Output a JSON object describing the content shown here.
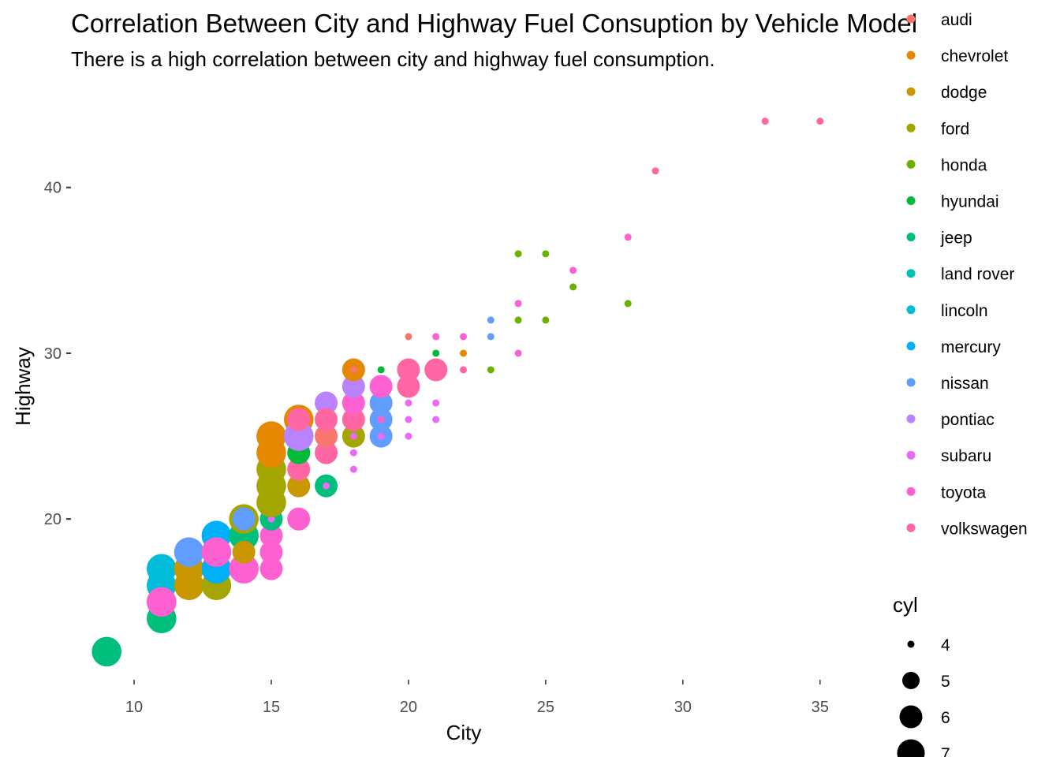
{
  "chart_data": {
    "type": "scatter",
    "title": "Correlation Between City and Highway Fuel Consuption by Vehicle Model",
    "subtitle": "There is a high correlation between city and highway fuel consumption.",
    "xlabel": "City",
    "ylabel": "Highway",
    "xlim": [
      7.7,
      36.3
    ],
    "ylim": [
      10.4,
      45.6
    ],
    "x_ticks": [
      10,
      15,
      20,
      25,
      30,
      35
    ],
    "y_ticks": [
      20,
      30,
      40
    ],
    "grid": false,
    "color_legend": {
      "title": "",
      "placement": "right",
      "entries": [
        {
          "label": "audi",
          "color": "#F8766D"
        },
        {
          "label": "chevrolet",
          "color": "#E58700"
        },
        {
          "label": "dodge",
          "color": "#C99800"
        },
        {
          "label": "ford",
          "color": "#A3A500"
        },
        {
          "label": "honda",
          "color": "#6BB100"
        },
        {
          "label": "hyundai",
          "color": "#00BA38"
        },
        {
          "label": "jeep",
          "color": "#00BF7D"
        },
        {
          "label": "land rover",
          "color": "#00C0AF"
        },
        {
          "label": "lincoln",
          "color": "#00BCD8"
        },
        {
          "label": "mercury",
          "color": "#00B0F6"
        },
        {
          "label": "nissan",
          "color": "#619CFF"
        },
        {
          "label": "pontiac",
          "color": "#B983FF"
        },
        {
          "label": "subaru",
          "color": "#E76BF3"
        },
        {
          "label": "toyota",
          "color": "#FD61D1"
        },
        {
          "label": "volkswagen",
          "color": "#FF67A4"
        }
      ]
    },
    "size_legend": {
      "title": "cyl",
      "placement": "right",
      "entries": [
        {
          "label": "4",
          "cyl": 4
        },
        {
          "label": "5",
          "cyl": 5
        },
        {
          "label": "6",
          "cyl": 6
        },
        {
          "label": "7",
          "cyl": 7
        }
      ]
    },
    "size_scale": {
      "4": 4.5,
      "5": 11,
      "6": 14.5,
      "7": 17.5
    },
    "points": [
      {
        "x": 9,
        "y": 12,
        "cyl": 8,
        "make": "jeep"
      },
      {
        "x": 11,
        "y": 14,
        "cyl": 8,
        "make": "jeep"
      },
      {
        "x": 11,
        "y": 15,
        "cyl": 8,
        "make": "dodge"
      },
      {
        "x": 11,
        "y": 16,
        "cyl": 8,
        "make": "lincoln"
      },
      {
        "x": 11,
        "y": 17,
        "cyl": 8,
        "make": "lincoln"
      },
      {
        "x": 11,
        "y": 15,
        "cyl": 8,
        "make": "toyota"
      },
      {
        "x": 12,
        "y": 16,
        "cyl": 8,
        "make": "dodge"
      },
      {
        "x": 12,
        "y": 17,
        "cyl": 8,
        "make": "dodge"
      },
      {
        "x": 12,
        "y": 18,
        "cyl": 8,
        "make": "nissan"
      },
      {
        "x": 13,
        "y": 16,
        "cyl": 8,
        "make": "ford"
      },
      {
        "x": 13,
        "y": 17,
        "cyl": 8,
        "make": "mercury"
      },
      {
        "x": 13,
        "y": 19,
        "cyl": 8,
        "make": "mercury"
      },
      {
        "x": 13,
        "y": 18,
        "cyl": 8,
        "make": "toyota"
      },
      {
        "x": 14,
        "y": 17,
        "cyl": 8,
        "make": "toyota"
      },
      {
        "x": 14,
        "y": 19,
        "cyl": 8,
        "make": "jeep"
      },
      {
        "x": 14,
        "y": 18,
        "cyl": 6,
        "make": "dodge"
      },
      {
        "x": 14,
        "y": 20,
        "cyl": 8,
        "make": "ford"
      },
      {
        "x": 14,
        "y": 20,
        "cyl": 6,
        "make": "nissan"
      },
      {
        "x": 15,
        "y": 17,
        "cyl": 6,
        "make": "toyota"
      },
      {
        "x": 15,
        "y": 18,
        "cyl": 6,
        "make": "toyota"
      },
      {
        "x": 15,
        "y": 19,
        "cyl": 6,
        "make": "toyota"
      },
      {
        "x": 15,
        "y": 20,
        "cyl": 6,
        "make": "jeep"
      },
      {
        "x": 15,
        "y": 20,
        "cyl": 4,
        "make": "subaru"
      },
      {
        "x": 15,
        "y": 21,
        "cyl": 8,
        "make": "ford"
      },
      {
        "x": 15,
        "y": 22,
        "cyl": 8,
        "make": "ford"
      },
      {
        "x": 15,
        "y": 23,
        "cyl": 8,
        "make": "ford"
      },
      {
        "x": 15,
        "y": 24,
        "cyl": 8,
        "make": "chevrolet"
      },
      {
        "x": 15,
        "y": 25,
        "cyl": 8,
        "make": "chevrolet"
      },
      {
        "x": 16,
        "y": 20,
        "cyl": 6,
        "make": "toyota"
      },
      {
        "x": 16,
        "y": 22,
        "cyl": 6,
        "make": "dodge"
      },
      {
        "x": 16,
        "y": 23,
        "cyl": 6,
        "make": "audi"
      },
      {
        "x": 16,
        "y": 23,
        "cyl": 6,
        "make": "volkswagen"
      },
      {
        "x": 16,
        "y": 24,
        "cyl": 6,
        "make": "hyundai"
      },
      {
        "x": 16,
        "y": 26,
        "cyl": 8,
        "make": "chevrolet"
      },
      {
        "x": 16,
        "y": 25,
        "cyl": 8,
        "make": "pontiac"
      },
      {
        "x": 16,
        "y": 26,
        "cyl": 6,
        "make": "volkswagen"
      },
      {
        "x": 17,
        "y": 22,
        "cyl": 6,
        "make": "jeep"
      },
      {
        "x": 17,
        "y": 22,
        "cyl": 4,
        "make": "subaru"
      },
      {
        "x": 17,
        "y": 24,
        "cyl": 6,
        "make": "volkswagen"
      },
      {
        "x": 17,
        "y": 25,
        "cyl": 6,
        "make": "audi"
      },
      {
        "x": 17,
        "y": 27,
        "cyl": 6,
        "make": "pontiac"
      },
      {
        "x": 17,
        "y": 26,
        "cyl": 6,
        "make": "volkswagen"
      },
      {
        "x": 18,
        "y": 23,
        "cyl": 4,
        "make": "subaru"
      },
      {
        "x": 18,
        "y": 24,
        "cyl": 4,
        "make": "subaru"
      },
      {
        "x": 18,
        "y": 25,
        "cyl": 6,
        "make": "ford"
      },
      {
        "x": 18,
        "y": 25,
        "cyl": 4,
        "make": "subaru"
      },
      {
        "x": 18,
        "y": 26,
        "cyl": 6,
        "make": "volkswagen"
      },
      {
        "x": 18,
        "y": 27,
        "cyl": 6,
        "make": "toyota"
      },
      {
        "x": 18,
        "y": 28,
        "cyl": 6,
        "make": "pontiac"
      },
      {
        "x": 18,
        "y": 29,
        "cyl": 6,
        "make": "chevrolet"
      },
      {
        "x": 18,
        "y": 29,
        "cyl": 4,
        "make": "audi"
      },
      {
        "x": 19,
        "y": 25,
        "cyl": 6,
        "make": "nissan"
      },
      {
        "x": 19,
        "y": 25,
        "cyl": 4,
        "make": "subaru"
      },
      {
        "x": 19,
        "y": 26,
        "cyl": 6,
        "make": "nissan"
      },
      {
        "x": 19,
        "y": 26,
        "cyl": 4,
        "make": "toyota"
      },
      {
        "x": 19,
        "y": 27,
        "cyl": 6,
        "make": "nissan"
      },
      {
        "x": 19,
        "y": 28,
        "cyl": 6,
        "make": "toyota"
      },
      {
        "x": 19,
        "y": 28,
        "cyl": 4,
        "make": "toyota"
      },
      {
        "x": 19,
        "y": 29,
        "cyl": 4,
        "make": "hyundai"
      },
      {
        "x": 20,
        "y": 25,
        "cyl": 4,
        "make": "subaru"
      },
      {
        "x": 20,
        "y": 26,
        "cyl": 4,
        "make": "subaru"
      },
      {
        "x": 20,
        "y": 27,
        "cyl": 4,
        "make": "subaru"
      },
      {
        "x": 20,
        "y": 28,
        "cyl": 6,
        "make": "volkswagen"
      },
      {
        "x": 20,
        "y": 29,
        "cyl": 6,
        "make": "volkswagen"
      },
      {
        "x": 20,
        "y": 31,
        "cyl": 4,
        "make": "audi"
      },
      {
        "x": 21,
        "y": 26,
        "cyl": 4,
        "make": "subaru"
      },
      {
        "x": 21,
        "y": 27,
        "cyl": 4,
        "make": "subaru"
      },
      {
        "x": 21,
        "y": 29,
        "cyl": 6,
        "make": "volkswagen"
      },
      {
        "x": 21,
        "y": 30,
        "cyl": 4,
        "make": "hyundai"
      },
      {
        "x": 21,
        "y": 31,
        "cyl": 4,
        "make": "toyota"
      },
      {
        "x": 22,
        "y": 29,
        "cyl": 4,
        "make": "volkswagen"
      },
      {
        "x": 22,
        "y": 30,
        "cyl": 4,
        "make": "chevrolet"
      },
      {
        "x": 22,
        "y": 31,
        "cyl": 4,
        "make": "toyota"
      },
      {
        "x": 23,
        "y": 29,
        "cyl": 4,
        "make": "honda"
      },
      {
        "x": 23,
        "y": 31,
        "cyl": 4,
        "make": "nissan"
      },
      {
        "x": 23,
        "y": 32,
        "cyl": 4,
        "make": "nissan"
      },
      {
        "x": 24,
        "y": 30,
        "cyl": 4,
        "make": "toyota"
      },
      {
        "x": 24,
        "y": 32,
        "cyl": 4,
        "make": "honda"
      },
      {
        "x": 24,
        "y": 33,
        "cyl": 4,
        "make": "toyota"
      },
      {
        "x": 24,
        "y": 36,
        "cyl": 4,
        "make": "honda"
      },
      {
        "x": 25,
        "y": 32,
        "cyl": 4,
        "make": "honda"
      },
      {
        "x": 25,
        "y": 36,
        "cyl": 4,
        "make": "honda"
      },
      {
        "x": 26,
        "y": 34,
        "cyl": 4,
        "make": "honda"
      },
      {
        "x": 26,
        "y": 35,
        "cyl": 4,
        "make": "toyota"
      },
      {
        "x": 28,
        "y": 33,
        "cyl": 4,
        "make": "honda"
      },
      {
        "x": 28,
        "y": 37,
        "cyl": 4,
        "make": "toyota"
      },
      {
        "x": 29,
        "y": 41,
        "cyl": 4,
        "make": "volkswagen"
      },
      {
        "x": 33,
        "y": 44,
        "cyl": 4,
        "make": "volkswagen"
      },
      {
        "x": 35,
        "y": 44,
        "cyl": 4,
        "make": "volkswagen"
      }
    ]
  }
}
